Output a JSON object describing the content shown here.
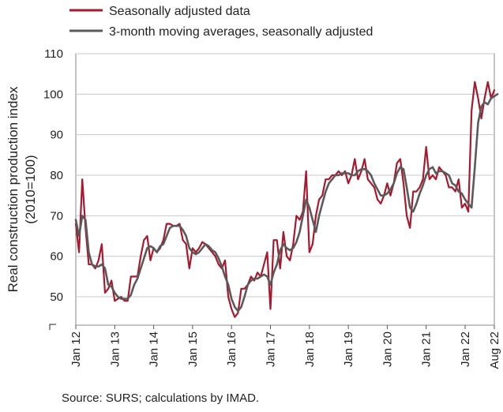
{
  "chart_data": {
    "type": "line",
    "title": "",
    "ylabel": "Real construction production index",
    "ylabel2": "(2010=100)",
    "xlabel": "",
    "ylim": [
      40,
      110
    ],
    "yticks": [
      50,
      60,
      70,
      80,
      90,
      100,
      110
    ],
    "x_tick_labels": [
      "Jan 12",
      "Jan 13",
      "Jan 14",
      "Jan 15",
      "Jan 16",
      "Jan 17",
      "Jan 18",
      "Jan 19",
      "Jan 20",
      "Jan 21",
      "Jan 22",
      "Aug 22"
    ],
    "x_start": "2012-01",
    "x_end": "2022-08",
    "grid": "horizontal",
    "legend_position": "top-left",
    "series": [
      {
        "name": "Seasonally adjusted data",
        "color": "#a6192e",
        "values": [
          68,
          61,
          79,
          67,
          58,
          58,
          57,
          59,
          63,
          51,
          52,
          54,
          49,
          49.5,
          50,
          49,
          49,
          55,
          55,
          55,
          60,
          64,
          65,
          59,
          62,
          61,
          62,
          64,
          68,
          68,
          67.5,
          67.5,
          68,
          64,
          63,
          57,
          62,
          61,
          62,
          63.5,
          63,
          62,
          61,
          60,
          58,
          57,
          59,
          50,
          47,
          45,
          46,
          52,
          52,
          53,
          55,
          54,
          56,
          55,
          58,
          61,
          47,
          64,
          64,
          57,
          66,
          60,
          59,
          63,
          70,
          69,
          71,
          81,
          61,
          63,
          70,
          74,
          75,
          79,
          79,
          80,
          80,
          81,
          80,
          81,
          78,
          80,
          84,
          79,
          81,
          84,
          79,
          78,
          77,
          74,
          73,
          75,
          78,
          75,
          78,
          83,
          84,
          78,
          70,
          67,
          76,
          76,
          77,
          79,
          87,
          79,
          80,
          79,
          82,
          81,
          80,
          77,
          77,
          76,
          79,
          72,
          73,
          71,
          96,
          103,
          99,
          94,
          99,
          103,
          99,
          101
        ]
      },
      {
        "name": "3-month moving averages, seasonally adjusted",
        "color": "#5a5a5a",
        "values": [
          69,
          65,
          70,
          69,
          61,
          58,
          57.5,
          57.5,
          58,
          57,
          53,
          52.5,
          51,
          50,
          49.5,
          49.5,
          49.5,
          50.5,
          53,
          54.5,
          57,
          59.5,
          62,
          62.5,
          62,
          61,
          62.5,
          63,
          65,
          67,
          67.5,
          67.5,
          67.5,
          66.5,
          65,
          62,
          61,
          60.5,
          61,
          62,
          63,
          62.5,
          61.5,
          61,
          59.5,
          57.5,
          55,
          53,
          49.5,
          47.5,
          46.5,
          47.5,
          50,
          53,
          54,
          54.5,
          54.5,
          55,
          55.5,
          55,
          53,
          56,
          58,
          61.5,
          63,
          62,
          61.5,
          62,
          63.5,
          66,
          70,
          74,
          72,
          69,
          66,
          70,
          73,
          76,
          78,
          79,
          80,
          80,
          80.5,
          80.5,
          80.5,
          80,
          80,
          81,
          81.5,
          81.5,
          81,
          80,
          78,
          76.5,
          75,
          75,
          75.5,
          76.5,
          78,
          80.5,
          82,
          81.5,
          77,
          72,
          71,
          73,
          75.5,
          77.5,
          80,
          81.5,
          82,
          80.5,
          81,
          81,
          80.5,
          80,
          78,
          77.5,
          76,
          75.5,
          74,
          73,
          72,
          82,
          93,
          97,
          98,
          97.5,
          99,
          99.5,
          100
        ]
      }
    ]
  },
  "source_text": "Source: SURS; calculations by IMAD."
}
